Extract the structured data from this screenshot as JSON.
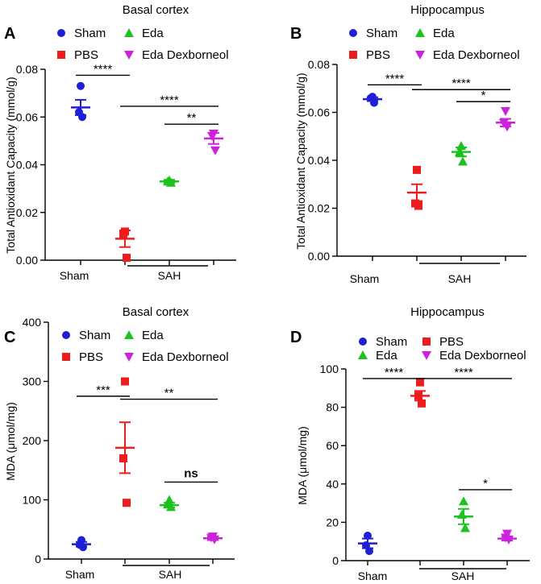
{
  "colors": {
    "Sham": "#1f1fd6",
    "PBS": "#ee1c1c",
    "Eda": "#1ec21e",
    "Eda Dexborneol": "#cc22dd"
  },
  "chart_data": [
    {
      "panel": "A",
      "type": "scatter",
      "title": "Basal cortex",
      "ylabel": "Total Antioxidant Capacity (mmol/g)",
      "ylim": [
        0,
        0.08
      ],
      "yticks": [
        "0.00",
        "0.02",
        "0.04",
        "0.06",
        "0.08"
      ],
      "tickvals": [
        0,
        0.02,
        0.04,
        0.06,
        0.08
      ],
      "legend": [
        "Sham",
        "Eda",
        "PBS",
        "Eda Dexborneol"
      ],
      "groups": [
        {
          "name": "Sham",
          "marker": "circle",
          "points": [
            0.073,
            0.062,
            0.06
          ],
          "mean": 0.064,
          "sem": 0.0032
        },
        {
          "name": "PBS",
          "marker": "square",
          "points": [
            0.012,
            0.011,
            0.001
          ],
          "mean": 0.009,
          "sem": 0.0035
        },
        {
          "name": "Eda",
          "marker": "triangle",
          "points": [
            0.0335,
            0.033,
            0.0325
          ],
          "mean": 0.033,
          "sem": 0.0007
        },
        {
          "name": "Eda Dexborneol",
          "marker": "invtriangle",
          "points": [
            0.053,
            0.052,
            0.046
          ],
          "mean": 0.051,
          "sem": 0.0023
        }
      ],
      "xcats": {
        "sham": "Sham",
        "sah": "SAH"
      },
      "significance": [
        {
          "from": 0,
          "to": 1,
          "y": 0.0775,
          "label": "****"
        },
        {
          "from": 1,
          "to": 3,
          "y": 0.0645,
          "label": "****"
        },
        {
          "from": 2,
          "to": 3,
          "y": 0.057,
          "label": "**"
        }
      ]
    },
    {
      "panel": "B",
      "type": "scatter",
      "title": "Hippocampus",
      "ylabel": "Total Antioxidant Capacity (mmol/g)",
      "ylim": [
        0,
        0.08
      ],
      "yticks": [
        "0.00",
        "0.02",
        "0.04",
        "0.06",
        "0.08"
      ],
      "tickvals": [
        0,
        0.02,
        0.04,
        0.06,
        0.08
      ],
      "legend": [
        "Sham",
        "Eda",
        "PBS",
        "Eda Dexborneol"
      ],
      "groups": [
        {
          "name": "Sham",
          "marker": "circle",
          "points": [
            0.0665,
            0.066,
            0.064
          ],
          "mean": 0.0655,
          "sem": 0.0008
        },
        {
          "name": "PBS",
          "marker": "square",
          "points": [
            0.036,
            0.022,
            0.021
          ],
          "mean": 0.0265,
          "sem": 0.0035
        },
        {
          "name": "Eda",
          "marker": "triangle",
          "points": [
            0.046,
            0.0435,
            0.0395
          ],
          "mean": 0.0435,
          "sem": 0.0019
        },
        {
          "name": "Eda Dexborneol",
          "marker": "invtriangle",
          "points": [
            0.0605,
            0.0555,
            0.054
          ],
          "mean": 0.0557,
          "sem": 0.0016
        }
      ],
      "xcats": {
        "sham": "Sham",
        "sah": "SAH"
      },
      "significance": [
        {
          "from": 0,
          "to": 1,
          "y": 0.0715,
          "label": "****"
        },
        {
          "from": 1,
          "to": 3,
          "y": 0.0695,
          "label": "****"
        },
        {
          "from": 2,
          "to": 3,
          "y": 0.0645,
          "label": "*"
        }
      ]
    },
    {
      "panel": "C",
      "type": "scatter",
      "title": "Basal cortex",
      "ylabel": "MDA (μmol/mg)",
      "ylim": [
        0,
        400
      ],
      "yticks": [
        "0",
        "100",
        "200",
        "300",
        "400"
      ],
      "tickvals": [
        0,
        100,
        200,
        300,
        400
      ],
      "legend": [
        "Sham",
        "Eda",
        "PBS",
        "Eda Dexborneol"
      ],
      "groups": [
        {
          "name": "Sham",
          "marker": "circle",
          "points": [
            32,
            24,
            20
          ],
          "mean": 25,
          "sem": 4
        },
        {
          "name": "PBS",
          "marker": "square",
          "points": [
            300,
            170,
            95
          ],
          "mean": 188,
          "sem": 43
        },
        {
          "name": "Eda",
          "marker": "triangle",
          "points": [
            100,
            93,
            88
          ],
          "mean": 91,
          "sem": 4
        },
        {
          "name": "Eda Dexborneol",
          "marker": "invtriangle",
          "points": [
            38,
            36,
            33
          ],
          "mean": 35,
          "sem": 3
        }
      ],
      "xcats": {
        "sham": "Sham",
        "sah": "SAH"
      },
      "significance": [
        {
          "from": 0,
          "to": 1,
          "y": 275,
          "label": "***"
        },
        {
          "from": 1,
          "to": 3,
          "y": 270,
          "label": "**"
        },
        {
          "from": 2,
          "to": 3,
          "y": 130,
          "label": "ns"
        }
      ]
    },
    {
      "panel": "D",
      "type": "scatter",
      "title": "Hippocampus",
      "ylabel": "MDA (μmol/mg)",
      "ylim": [
        0,
        100
      ],
      "yticks": [
        "0",
        "20",
        "40",
        "60",
        "80",
        "100"
      ],
      "tickvals": [
        0,
        20,
        40,
        60,
        80,
        100
      ],
      "legend": [
        "Sham",
        "PBS",
        "Eda",
        "Eda Dexborneol"
      ],
      "groups": [
        {
          "name": "Sham",
          "marker": "circle",
          "points": [
            13,
            8,
            5
          ],
          "mean": 9,
          "sem": 2.5
        },
        {
          "name": "PBS",
          "marker": "square",
          "points": [
            93,
            86,
            82
          ],
          "mean": 86,
          "sem": 2.5
        },
        {
          "name": "Eda",
          "marker": "triangle",
          "points": [
            31,
            24,
            17
          ],
          "mean": 23,
          "sem": 4
        },
        {
          "name": "Eda Dexborneol",
          "marker": "invtriangle",
          "points": [
            14,
            12,
            11
          ],
          "mean": 11.5,
          "sem": 1
        }
      ],
      "xcats": {
        "sham": "Sham",
        "sah": "SAH"
      },
      "significance": [
        {
          "from": 0,
          "to": 1,
          "y": 95,
          "label": "****"
        },
        {
          "from": 1,
          "to": 3,
          "y": 95,
          "label": "****"
        },
        {
          "from": 2,
          "to": 3,
          "y": 37,
          "label": "*"
        }
      ]
    }
  ]
}
